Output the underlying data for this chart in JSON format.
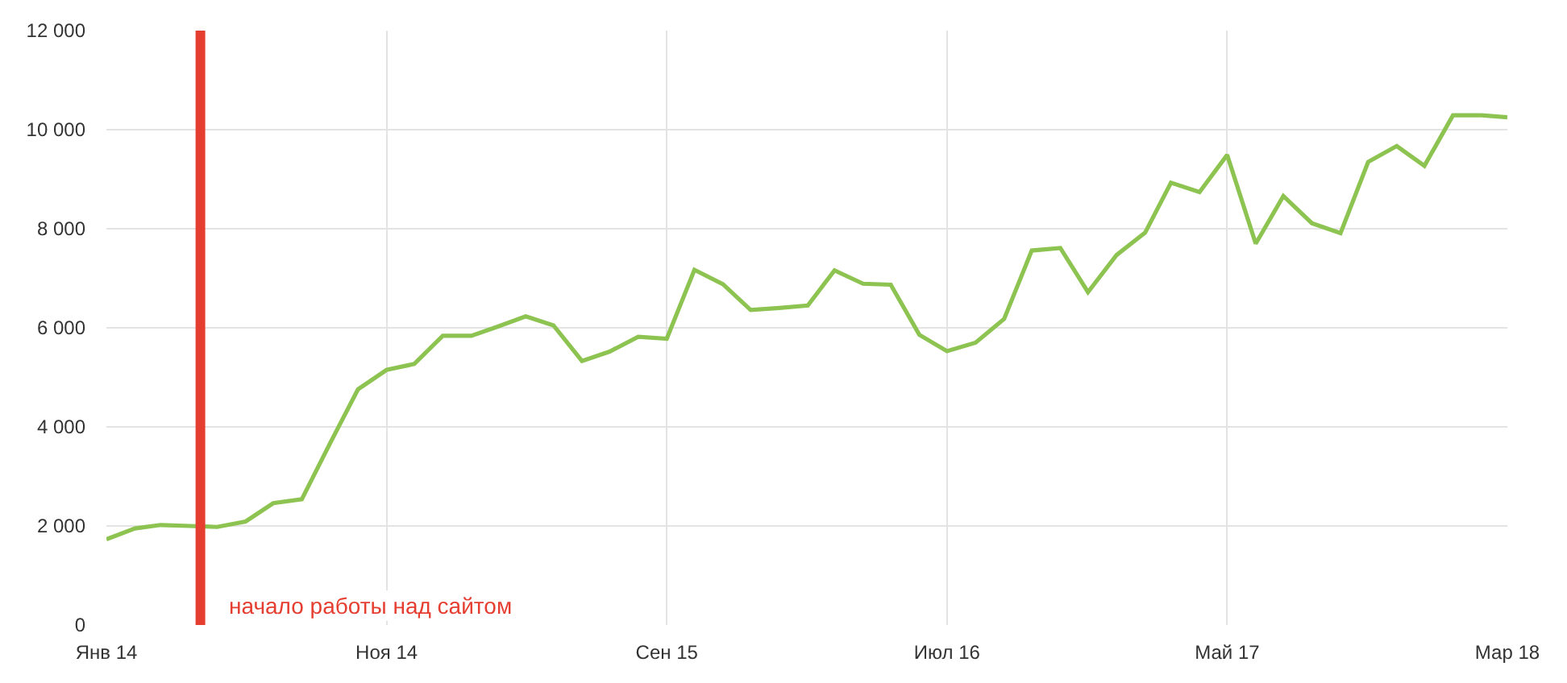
{
  "chart_data": {
    "type": "line",
    "x": [
      "2014-01",
      "2014-02",
      "2014-03",
      "2014-04",
      "2014-05",
      "2014-06",
      "2014-07",
      "2014-08",
      "2014-09",
      "2014-10",
      "2014-11",
      "2014-12",
      "2015-01",
      "2015-02",
      "2015-03",
      "2015-04",
      "2015-05",
      "2015-06",
      "2015-07",
      "2015-08",
      "2015-09",
      "2015-10",
      "2015-11",
      "2015-12",
      "2016-01",
      "2016-02",
      "2016-03",
      "2016-04",
      "2016-05",
      "2016-06",
      "2016-07",
      "2016-08",
      "2016-09",
      "2016-10",
      "2016-11",
      "2016-12",
      "2017-01",
      "2017-02",
      "2017-03",
      "2017-04",
      "2017-05",
      "2017-06",
      "2017-07",
      "2017-08",
      "2017-09",
      "2017-10",
      "2017-11",
      "2017-12",
      "2018-01",
      "2018-02",
      "2018-03"
    ],
    "series": [
      {
        "color": "#8dc350",
        "values": [
          1730,
          1950,
          2020,
          2000,
          1980,
          2090,
          2460,
          2540,
          3680,
          4760,
          5150,
          5270,
          5840,
          5840,
          6020,
          6230,
          6050,
          5330,
          5520,
          5820,
          5780,
          7170,
          6880,
          6360,
          6400,
          6450,
          7160,
          6890,
          6870,
          5860,
          5530,
          5700,
          6180,
          7560,
          7610,
          6720,
          7470,
          7920,
          8930,
          8740,
          9490,
          7700,
          8660,
          8110,
          7910,
          9350,
          9670,
          9270,
          10290,
          10290,
          10250
        ]
      }
    ],
    "xlim": [
      "2014-01",
      "2018-03"
    ],
    "xticks": [
      {
        "value": "2014-01",
        "label": "Янв 14"
      },
      {
        "value": "2014-11",
        "label": "Ноя 14"
      },
      {
        "value": "2015-09",
        "label": "Сен 15"
      },
      {
        "value": "2016-07",
        "label": "Июл 16"
      },
      {
        "value": "2017-05",
        "label": "Май 17"
      },
      {
        "value": "2018-03",
        "label": "Мар 18"
      }
    ],
    "ylim": [
      0,
      12000
    ],
    "yticks": [
      0,
      {
        "value": 2000,
        "label": "2 000"
      },
      {
        "value": 4000,
        "label": "4 000"
      },
      {
        "value": 6000,
        "label": "6 000"
      },
      {
        "value": 8000,
        "label": "8 000"
      },
      {
        "value": 10000,
        "label": "10 000"
      },
      {
        "value": 12000,
        "label": "12 000"
      }
    ],
    "grid": true,
    "ref_lines": [
      {
        "axis": "x",
        "value": "2014-04-13",
        "label": "начало работы над сайтом",
        "color": "#e53e30"
      }
    ]
  }
}
